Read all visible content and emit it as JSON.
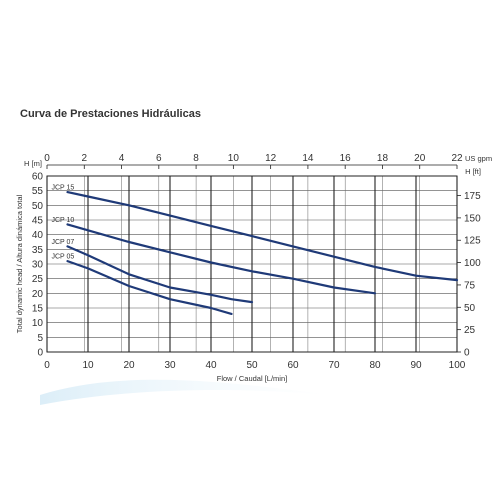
{
  "page": {
    "title": "Curva de Prestaciones Hidráulicas"
  },
  "chart_data": {
    "type": "line",
    "title": "Curva de Prestaciones Hidráulicas",
    "xlabel": "Flow / Caudal [L/min]",
    "x2label": "US gpm",
    "ylabel": "Total dynamic head / Altura dinámica total",
    "y_left_unit": "H [m]",
    "y_right_unit": "H [ft]",
    "xlim": [
      0,
      100
    ],
    "ylim": [
      0,
      60
    ],
    "x2lim": [
      0,
      22
    ],
    "y2lim": [
      0,
      196.85
    ],
    "x_ticks": [
      0,
      10,
      20,
      30,
      40,
      50,
      60,
      70,
      80,
      90,
      100
    ],
    "y_ticks": [
      0,
      5,
      10,
      15,
      20,
      25,
      30,
      35,
      40,
      45,
      50,
      55,
      60
    ],
    "x2_ticks": [
      0,
      2,
      4,
      6,
      8,
      10,
      12,
      14,
      16,
      18,
      20,
      22
    ],
    "y2_ticks": [
      0,
      25,
      50,
      75,
      100,
      125,
      150,
      175
    ],
    "grid": true,
    "series": [
      {
        "name": "JCP 15",
        "x": [
          5,
          10,
          20,
          30,
          40,
          50,
          60,
          70,
          80,
          90,
          100
        ],
        "y": [
          54.5,
          53,
          50,
          46.5,
          43,
          39.5,
          36,
          32.5,
          29,
          26,
          24.5
        ]
      },
      {
        "name": "JCP 10",
        "x": [
          5,
          10,
          20,
          30,
          40,
          50,
          60,
          70,
          80
        ],
        "y": [
          43.5,
          41.5,
          37.5,
          34,
          30.5,
          27.5,
          25,
          22,
          20
        ]
      },
      {
        "name": "JCP 07",
        "x": [
          5,
          10,
          20,
          30,
          40,
          45,
          50
        ],
        "y": [
          36,
          33,
          26.5,
          22,
          19.5,
          18,
          17
        ]
      },
      {
        "name": "JCP 05",
        "x": [
          5,
          10,
          20,
          30,
          40,
          45
        ],
        "y": [
          31,
          28.5,
          22.5,
          18,
          15,
          13
        ]
      }
    ],
    "line_color": "#1f3a78"
  }
}
